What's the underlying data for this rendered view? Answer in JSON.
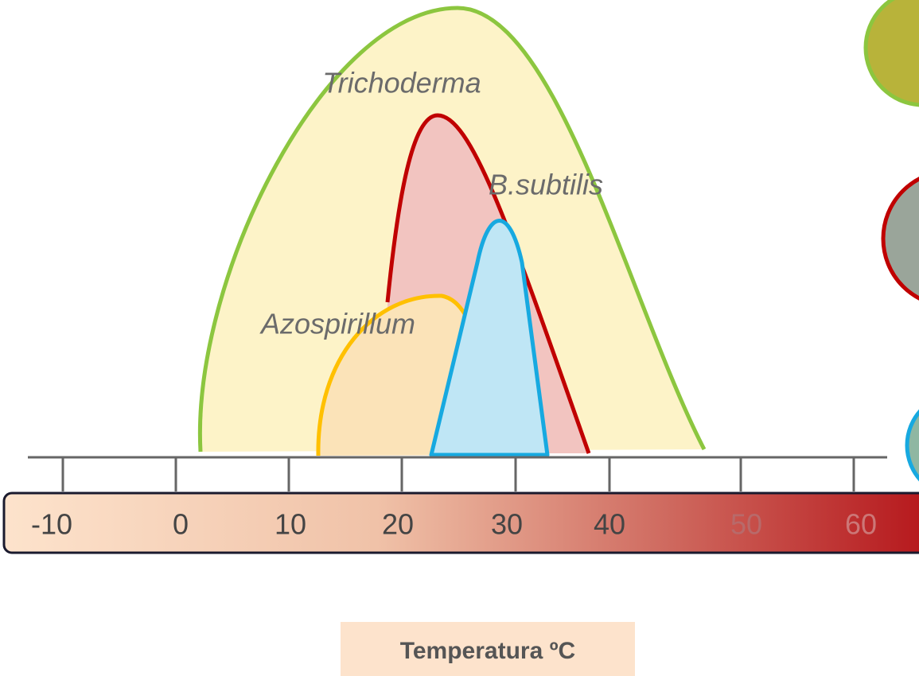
{
  "curves": [
    {
      "label": "Trichoderma"
    },
    {
      "label": "B.subtilis"
    },
    {
      "label": "Azospirillum"
    }
  ],
  "scale": {
    "labels": [
      "-10",
      "0",
      "10",
      "20",
      "30",
      "40",
      "50",
      "60"
    ]
  },
  "caption": "Temperatura ºC"
}
